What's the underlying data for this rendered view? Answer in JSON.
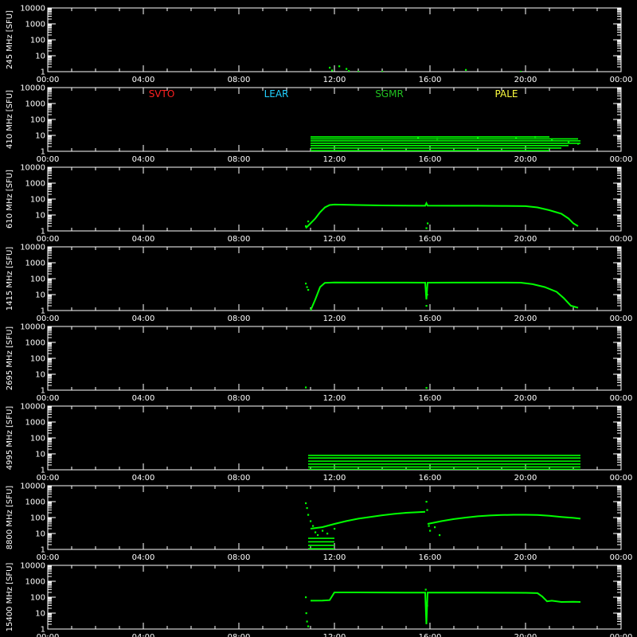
{
  "colors": {
    "background": "#000000",
    "axes": "#ffffff",
    "data": "#00ff00",
    "SVTO": "#ff2020",
    "LEAR": "#20d0ff",
    "SGMR": "#20c020",
    "PALE": "#ffff40"
  },
  "stations": [
    "SVTO",
    "LEAR",
    "SGMR",
    "PALE"
  ],
  "chart_data": {
    "type": "scatter",
    "x_ticks": [
      "00:00",
      "04:00",
      "08:00",
      "12:00",
      "16:00",
      "20:00",
      "00:00"
    ],
    "x_range_hours": [
      0,
      24
    ],
    "y_ticks": [
      "1",
      "10",
      "100",
      "1000",
      "10000"
    ],
    "y_scale": "log",
    "ylim": [
      1,
      10000
    ],
    "panels": [
      {
        "ylabel": "245 MHz [SFU]",
        "segments": [],
        "scatter": [
          [
            11.8,
            1.8
          ],
          [
            12.2,
            2.2
          ],
          [
            12.5,
            1.5
          ],
          [
            11.9,
            1.2
          ],
          [
            12.6,
            1.1
          ],
          [
            13.0,
            1.0
          ],
          [
            14.0,
            1.0
          ],
          [
            17.5,
            1.3
          ],
          [
            19.8,
            1.0
          ]
        ],
        "levels": []
      },
      {
        "ylabel": "410 MHz [SFU]",
        "segments": [],
        "scatter": [
          [
            15.5,
            7.0
          ],
          [
            16.3,
            6.0
          ],
          [
            18.0,
            7.5
          ],
          [
            19.6,
            6.5
          ],
          [
            20.4,
            8.0
          ],
          [
            21.1,
            5.0
          ],
          [
            21.8,
            4.0
          ],
          [
            22.2,
            3.0
          ]
        ],
        "levels": [
          {
            "y": 8.0,
            "from": 11.0,
            "to": 21.0
          },
          {
            "y": 6.0,
            "from": 11.0,
            "to": 22.2
          },
          {
            "y": 4.5,
            "from": 11.0,
            "to": 22.3
          },
          {
            "y": 3.2,
            "from": 11.0,
            "to": 22.3
          },
          {
            "y": 2.3,
            "from": 11.0,
            "to": 21.8
          },
          {
            "y": 1.6,
            "from": 11.0,
            "to": 21.5
          },
          {
            "y": 1.1,
            "from": 11.0,
            "to": 21.0
          }
        ]
      },
      {
        "ylabel": "610 MHz [SFU]",
        "segments": [
          [
            [
              10.8,
              1.5
            ],
            [
              11.0,
              3.0
            ],
            [
              11.2,
              6.0
            ],
            [
              11.4,
              15.0
            ],
            [
              11.6,
              30.0
            ],
            [
              11.8,
              42.0
            ],
            [
              12.0,
              45.0
            ],
            [
              13.0,
              42.0
            ],
            [
              14.0,
              40.0
            ],
            [
              15.0,
              39.0
            ],
            [
              15.8,
              38.0
            ],
            [
              15.85,
              55.0
            ],
            [
              15.9,
              39.0
            ],
            [
              17.0,
              38.0
            ],
            [
              18.0,
              38.0
            ],
            [
              19.0,
              37.0
            ],
            [
              20.0,
              36.0
            ],
            [
              20.5,
              30.0
            ],
            [
              21.0,
              20.0
            ],
            [
              21.5,
              12.0
            ],
            [
              21.8,
              6.0
            ],
            [
              22.0,
              3.0
            ],
            [
              22.2,
              2.0
            ]
          ]
        ],
        "scatter": [
          [
            10.8,
            2.0
          ],
          [
            10.9,
            4.0
          ],
          [
            15.85,
            1.5
          ],
          [
            15.9,
            3.0
          ]
        ],
        "levels": []
      },
      {
        "ylabel": "1415 MHz [SFU]",
        "segments": [
          [
            [
              11.0,
              1.0
            ],
            [
              11.2,
              5.0
            ],
            [
              11.4,
              30.0
            ],
            [
              11.6,
              55.0
            ],
            [
              12.0,
              58.0
            ],
            [
              13.0,
              57.0
            ],
            [
              14.0,
              57.0
            ],
            [
              15.0,
              57.0
            ],
            [
              15.8,
              56.0
            ],
            [
              15.85,
              5.0
            ],
            [
              15.9,
              56.0
            ],
            [
              17.0,
              57.0
            ],
            [
              18.0,
              57.0
            ],
            [
              19.0,
              57.0
            ],
            [
              19.8,
              56.0
            ],
            [
              20.3,
              45.0
            ],
            [
              20.8,
              30.0
            ],
            [
              21.3,
              15.0
            ],
            [
              21.6,
              6.0
            ],
            [
              21.9,
              2.0
            ],
            [
              22.2,
              1.5
            ]
          ]
        ],
        "scatter": [
          [
            10.8,
            50.0
          ],
          [
            10.85,
            30.0
          ],
          [
            10.9,
            20.0
          ],
          [
            15.85,
            2.0
          ],
          [
            15.88,
            10.0
          ]
        ],
        "levels": []
      },
      {
        "ylabel": "2695 MHz [SFU]",
        "segments": [],
        "scatter": [
          [
            10.8,
            1.5
          ],
          [
            15.85,
            1.4
          ]
        ],
        "levels": []
      },
      {
        "ylabel": "4995 MHz [SFU]",
        "segments": [],
        "scatter": [],
        "levels": [
          {
            "y": 8.0,
            "from": 10.9,
            "to": 22.3
          },
          {
            "y": 5.5,
            "from": 10.9,
            "to": 22.3
          },
          {
            "y": 3.5,
            "from": 10.9,
            "to": 22.3
          },
          {
            "y": 2.3,
            "from": 10.9,
            "to": 22.3
          },
          {
            "y": 1.5,
            "from": 10.9,
            "to": 22.3
          },
          {
            "y": 1.05,
            "from": 10.9,
            "to": 22.3
          }
        ]
      },
      {
        "ylabel": "8800 MHz [SFU]",
        "segments": [
          [
            [
              11.0,
              20.0
            ],
            [
              11.5,
              25.0
            ],
            [
              12.0,
              40.0
            ],
            [
              12.5,
              60.0
            ],
            [
              13.0,
              85.0
            ],
            [
              13.5,
              110.0
            ],
            [
              14.0,
              140.0
            ],
            [
              14.5,
              170.0
            ],
            [
              15.0,
              200.0
            ],
            [
              15.5,
              220.0
            ],
            [
              15.8,
              230.0
            ]
          ],
          [
            [
              15.9,
              40.0
            ],
            [
              16.5,
              60.0
            ],
            [
              17.0,
              80.0
            ],
            [
              17.5,
              100.0
            ],
            [
              18.0,
              120.0
            ],
            [
              18.5,
              135.0
            ],
            [
              19.0,
              145.0
            ],
            [
              19.5,
              150.0
            ],
            [
              20.0,
              150.0
            ],
            [
              20.5,
              145.0
            ],
            [
              21.0,
              130.0
            ],
            [
              21.5,
              110.0
            ],
            [
              22.0,
              95.0
            ],
            [
              22.3,
              85.0
            ]
          ]
        ],
        "scatter": [
          [
            10.8,
            800.0
          ],
          [
            10.85,
            400.0
          ],
          [
            10.9,
            150.0
          ],
          [
            11.0,
            60.0
          ],
          [
            11.1,
            30.0
          ],
          [
            11.2,
            12.0
          ],
          [
            11.3,
            8.0
          ],
          [
            11.5,
            15.0
          ],
          [
            11.7,
            10.0
          ],
          [
            12.0,
            20.0
          ],
          [
            15.85,
            1000.0
          ],
          [
            15.88,
            300.0
          ],
          [
            15.95,
            30.0
          ],
          [
            16.0,
            15.0
          ],
          [
            16.2,
            25.0
          ],
          [
            16.4,
            8.0
          ]
        ],
        "levels": [
          {
            "y": 5.0,
            "from": 10.9,
            "to": 12.0
          },
          {
            "y": 3.0,
            "from": 10.9,
            "to": 12.0
          },
          {
            "y": 1.8,
            "from": 10.9,
            "to": 12.0
          },
          {
            "y": 1.1,
            "from": 10.9,
            "to": 12.0
          }
        ]
      },
      {
        "ylabel": "15400 MHz [SFU]",
        "segments": [
          [
            [
              11.0,
              60.0
            ],
            [
              11.5,
              62.0
            ],
            [
              11.8,
              65.0
            ],
            [
              12.0,
              200.0
            ],
            [
              13.0,
              200.0
            ],
            [
              14.0,
              198.0
            ],
            [
              15.0,
              196.0
            ],
            [
              15.8,
              195.0
            ],
            [
              15.85,
              2.0
            ],
            [
              15.9,
              195.0
            ],
            [
              17.0,
              195.0
            ],
            [
              18.0,
              192.0
            ],
            [
              19.0,
              190.0
            ],
            [
              20.0,
              188.0
            ],
            [
              20.5,
              180.0
            ],
            [
              20.7,
              110.0
            ],
            [
              20.9,
              55.0
            ],
            [
              21.1,
              60.0
            ],
            [
              21.5,
              50.0
            ],
            [
              22.0,
              52.0
            ],
            [
              22.3,
              50.0
            ]
          ]
        ],
        "scatter": [
          [
            10.8,
            100.0
          ],
          [
            10.82,
            10.0
          ],
          [
            10.85,
            3.0
          ],
          [
            10.9,
            1.5
          ],
          [
            15.82,
            300.0
          ],
          [
            15.88,
            30.0
          ]
        ],
        "levels": []
      }
    ]
  }
}
